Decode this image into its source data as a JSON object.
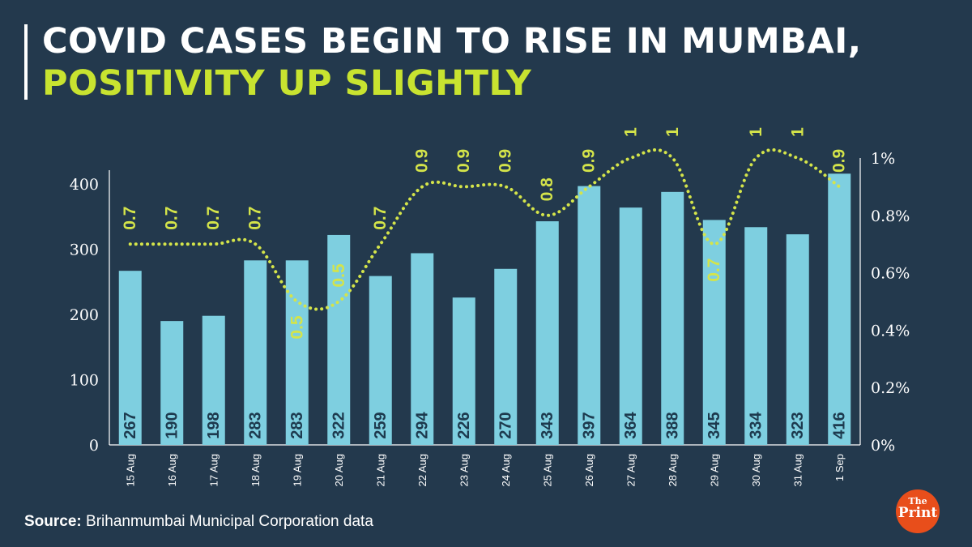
{
  "header": {
    "title_line1": "COVID CASES BEGIN TO RISE IN MUMBAI,",
    "title_line2": "POSITIVITY UP SLIGHTLY"
  },
  "footer": {
    "source_label": "Source:",
    "source_text": "Brihanmumbai Municipal Corporation data",
    "logo_the": "The",
    "logo_print": "Print"
  },
  "colors": {
    "background": "#23394d",
    "bar": "#7ecfe0",
    "bar_label": "#1d3a4e",
    "line": "#d4e44a",
    "axis_text": "#ffffff",
    "title_accent": "#c8e330"
  },
  "chart_data": {
    "type": "bar",
    "categories": [
      "15 Aug",
      "16 Aug",
      "17 Aug",
      "18 Aug",
      "19 Aug",
      "20 Aug",
      "21 Aug",
      "22 Aug",
      "23 Aug",
      "24 Aug",
      "25 Aug",
      "26 Aug",
      "27 Aug",
      "28 Aug",
      "29 Aug",
      "30 Aug",
      "31 Aug",
      "1 Sep"
    ],
    "series": [
      {
        "type": "bar",
        "axis": "left",
        "values": [
          267,
          190,
          198,
          283,
          283,
          322,
          259,
          294,
          226,
          270,
          343,
          397,
          364,
          388,
          345,
          334,
          323,
          416
        ]
      },
      {
        "type": "line",
        "style": "dotted",
        "axis": "right",
        "values": [
          0.7,
          0.7,
          0.7,
          0.7,
          0.5,
          0.5,
          0.7,
          0.9,
          0.9,
          0.9,
          0.8,
          0.9,
          1,
          1,
          0.7,
          1,
          1,
          0.9
        ],
        "labels": [
          "0.7",
          "0.7",
          "0.7",
          "0.7",
          "0.5",
          "0.5",
          "0.7",
          "0.9",
          "0.9",
          "0.9",
          "0.8",
          "0.9",
          "1",
          "1",
          "0.7",
          "1",
          "1",
          "0.9"
        ]
      }
    ],
    "y_left": {
      "ylim": [
        0,
        440
      ],
      "ticks": [
        0,
        100,
        200,
        300,
        400
      ],
      "tick_labels": [
        "0",
        "100",
        "200",
        "300",
        "400"
      ]
    },
    "y_right": {
      "ylim": [
        0,
        1
      ],
      "ticks": [
        0,
        0.2,
        0.4,
        0.6,
        0.8,
        1
      ],
      "tick_labels": [
        "0%",
        "0.2%",
        "0.4%",
        "0.6%",
        "0.8%",
        "1%"
      ]
    },
    "grid": false
  }
}
